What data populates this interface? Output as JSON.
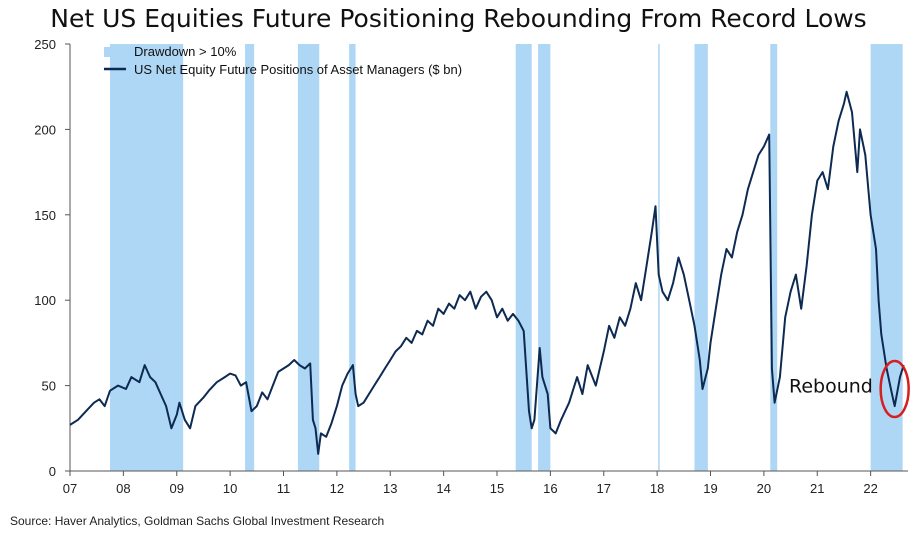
{
  "title": "Net US Equities Future Positioning Rebounding From Record Lows",
  "source": "Source: Haver Analytics, Goldman Sachs Global Investment Research",
  "chart_data": {
    "type": "line",
    "ylim": [
      0,
      250
    ],
    "xlim": [
      2007,
      2022.7
    ],
    "yticks": [
      0,
      50,
      100,
      150,
      200,
      250
    ],
    "xticks": [
      {
        "value": 2007,
        "label": "07"
      },
      {
        "value": 2008,
        "label": "08"
      },
      {
        "value": 2009,
        "label": "09"
      },
      {
        "value": 2010,
        "label": "10"
      },
      {
        "value": 2011,
        "label": "11"
      },
      {
        "value": 2012,
        "label": "12"
      },
      {
        "value": 2013,
        "label": "13"
      },
      {
        "value": 2014,
        "label": "14"
      },
      {
        "value": 2015,
        "label": "15"
      },
      {
        "value": 2016,
        "label": "16"
      },
      {
        "value": 2017,
        "label": "17"
      },
      {
        "value": 2018,
        "label": "18"
      },
      {
        "value": 2019,
        "label": "19"
      },
      {
        "value": 2020,
        "label": "20"
      },
      {
        "value": 2021,
        "label": "21"
      },
      {
        "value": 2022,
        "label": "22"
      }
    ],
    "legend": [
      {
        "label": "Drawdown > 10%",
        "kind": "patch",
        "color": "#aed6f5"
      },
      {
        "label": "US Net Equity Future Positions of Asset Managers ($ bn)",
        "kind": "line",
        "color": "#0d2a52"
      }
    ],
    "legend_position": "top-left",
    "drawdowns": [
      [
        2007.75,
        2009.12
      ],
      [
        2010.28,
        2010.45
      ],
      [
        2011.27,
        2011.67
      ],
      [
        2012.23,
        2012.35
      ],
      [
        2015.35,
        2015.65
      ],
      [
        2015.77,
        2016.0
      ],
      [
        2018.02,
        2018.04
      ],
      [
        2018.7,
        2018.95
      ],
      [
        2020.12,
        2020.25
      ],
      [
        2022.0,
        2022.6
      ]
    ],
    "series": [
      {
        "name": "US Net Equity Future Positions of Asset Managers ($ bn)",
        "color": "#0d2a52",
        "points": [
          [
            2007.0,
            27
          ],
          [
            2007.15,
            30
          ],
          [
            2007.3,
            35
          ],
          [
            2007.45,
            40
          ],
          [
            2007.55,
            42
          ],
          [
            2007.65,
            38
          ],
          [
            2007.75,
            47
          ],
          [
            2007.9,
            50
          ],
          [
            2008.05,
            48
          ],
          [
            2008.15,
            55
          ],
          [
            2008.3,
            52
          ],
          [
            2008.4,
            62
          ],
          [
            2008.5,
            55
          ],
          [
            2008.6,
            52
          ],
          [
            2008.7,
            45
          ],
          [
            2008.8,
            38
          ],
          [
            2008.9,
            25
          ],
          [
            2009.0,
            33
          ],
          [
            2009.05,
            40
          ],
          [
            2009.15,
            30
          ],
          [
            2009.25,
            25
          ],
          [
            2009.35,
            38
          ],
          [
            2009.5,
            43
          ],
          [
            2009.6,
            47
          ],
          [
            2009.75,
            52
          ],
          [
            2009.9,
            55
          ],
          [
            2010.0,
            57
          ],
          [
            2010.1,
            56
          ],
          [
            2010.2,
            50
          ],
          [
            2010.3,
            52
          ],
          [
            2010.4,
            35
          ],
          [
            2010.5,
            38
          ],
          [
            2010.6,
            46
          ],
          [
            2010.7,
            42
          ],
          [
            2010.8,
            50
          ],
          [
            2010.9,
            58
          ],
          [
            2011.0,
            60
          ],
          [
            2011.1,
            62
          ],
          [
            2011.2,
            65
          ],
          [
            2011.3,
            62
          ],
          [
            2011.4,
            60
          ],
          [
            2011.5,
            63
          ],
          [
            2011.55,
            30
          ],
          [
            2011.6,
            25
          ],
          [
            2011.65,
            10
          ],
          [
            2011.7,
            22
          ],
          [
            2011.8,
            20
          ],
          [
            2011.9,
            28
          ],
          [
            2012.0,
            38
          ],
          [
            2012.1,
            50
          ],
          [
            2012.2,
            57
          ],
          [
            2012.3,
            62
          ],
          [
            2012.35,
            45
          ],
          [
            2012.4,
            38
          ],
          [
            2012.5,
            40
          ],
          [
            2012.6,
            45
          ],
          [
            2012.7,
            50
          ],
          [
            2012.8,
            55
          ],
          [
            2012.9,
            60
          ],
          [
            2013.0,
            65
          ],
          [
            2013.1,
            70
          ],
          [
            2013.2,
            73
          ],
          [
            2013.3,
            78
          ],
          [
            2013.4,
            75
          ],
          [
            2013.5,
            82
          ],
          [
            2013.6,
            80
          ],
          [
            2013.7,
            88
          ],
          [
            2013.8,
            85
          ],
          [
            2013.9,
            95
          ],
          [
            2014.0,
            92
          ],
          [
            2014.1,
            98
          ],
          [
            2014.2,
            95
          ],
          [
            2014.3,
            103
          ],
          [
            2014.4,
            100
          ],
          [
            2014.5,
            105
          ],
          [
            2014.6,
            95
          ],
          [
            2014.7,
            102
          ],
          [
            2014.8,
            105
          ],
          [
            2014.9,
            100
          ],
          [
            2015.0,
            90
          ],
          [
            2015.1,
            95
          ],
          [
            2015.2,
            88
          ],
          [
            2015.3,
            92
          ],
          [
            2015.4,
            88
          ],
          [
            2015.5,
            82
          ],
          [
            2015.6,
            35
          ],
          [
            2015.65,
            25
          ],
          [
            2015.7,
            30
          ],
          [
            2015.8,
            72
          ],
          [
            2015.85,
            55
          ],
          [
            2015.95,
            45
          ],
          [
            2016.0,
            25
          ],
          [
            2016.1,
            22
          ],
          [
            2016.2,
            30
          ],
          [
            2016.35,
            40
          ],
          [
            2016.5,
            55
          ],
          [
            2016.6,
            45
          ],
          [
            2016.7,
            62
          ],
          [
            2016.85,
            50
          ],
          [
            2017.0,
            70
          ],
          [
            2017.1,
            85
          ],
          [
            2017.2,
            78
          ],
          [
            2017.3,
            90
          ],
          [
            2017.4,
            85
          ],
          [
            2017.5,
            95
          ],
          [
            2017.6,
            110
          ],
          [
            2017.7,
            100
          ],
          [
            2017.8,
            120
          ],
          [
            2017.9,
            140
          ],
          [
            2017.97,
            155
          ],
          [
            2018.03,
            115
          ],
          [
            2018.1,
            105
          ],
          [
            2018.2,
            100
          ],
          [
            2018.3,
            110
          ],
          [
            2018.4,
            125
          ],
          [
            2018.5,
            115
          ],
          [
            2018.6,
            100
          ],
          [
            2018.7,
            85
          ],
          [
            2018.8,
            65
          ],
          [
            2018.85,
            48
          ],
          [
            2018.95,
            60
          ],
          [
            2019.0,
            75
          ],
          [
            2019.1,
            95
          ],
          [
            2019.2,
            115
          ],
          [
            2019.3,
            130
          ],
          [
            2019.4,
            125
          ],
          [
            2019.5,
            140
          ],
          [
            2019.6,
            150
          ],
          [
            2019.7,
            165
          ],
          [
            2019.8,
            175
          ],
          [
            2019.9,
            185
          ],
          [
            2020.0,
            190
          ],
          [
            2020.1,
            197
          ],
          [
            2020.15,
            60
          ],
          [
            2020.2,
            40
          ],
          [
            2020.3,
            55
          ],
          [
            2020.4,
            90
          ],
          [
            2020.5,
            105
          ],
          [
            2020.6,
            115
          ],
          [
            2020.7,
            95
          ],
          [
            2020.8,
            120
          ],
          [
            2020.9,
            150
          ],
          [
            2021.0,
            170
          ],
          [
            2021.1,
            175
          ],
          [
            2021.2,
            165
          ],
          [
            2021.3,
            190
          ],
          [
            2021.4,
            205
          ],
          [
            2021.5,
            215
          ],
          [
            2021.55,
            222
          ],
          [
            2021.65,
            210
          ],
          [
            2021.75,
            175
          ],
          [
            2021.8,
            200
          ],
          [
            2021.9,
            185
          ],
          [
            2022.0,
            150
          ],
          [
            2022.1,
            130
          ],
          [
            2022.15,
            100
          ],
          [
            2022.2,
            80
          ],
          [
            2022.3,
            60
          ],
          [
            2022.4,
            45
          ],
          [
            2022.45,
            38
          ],
          [
            2022.55,
            55
          ],
          [
            2022.62,
            62
          ]
        ]
      }
    ],
    "annotation": {
      "text": "Rebound",
      "x": 2021.5,
      "y": 50
    }
  }
}
